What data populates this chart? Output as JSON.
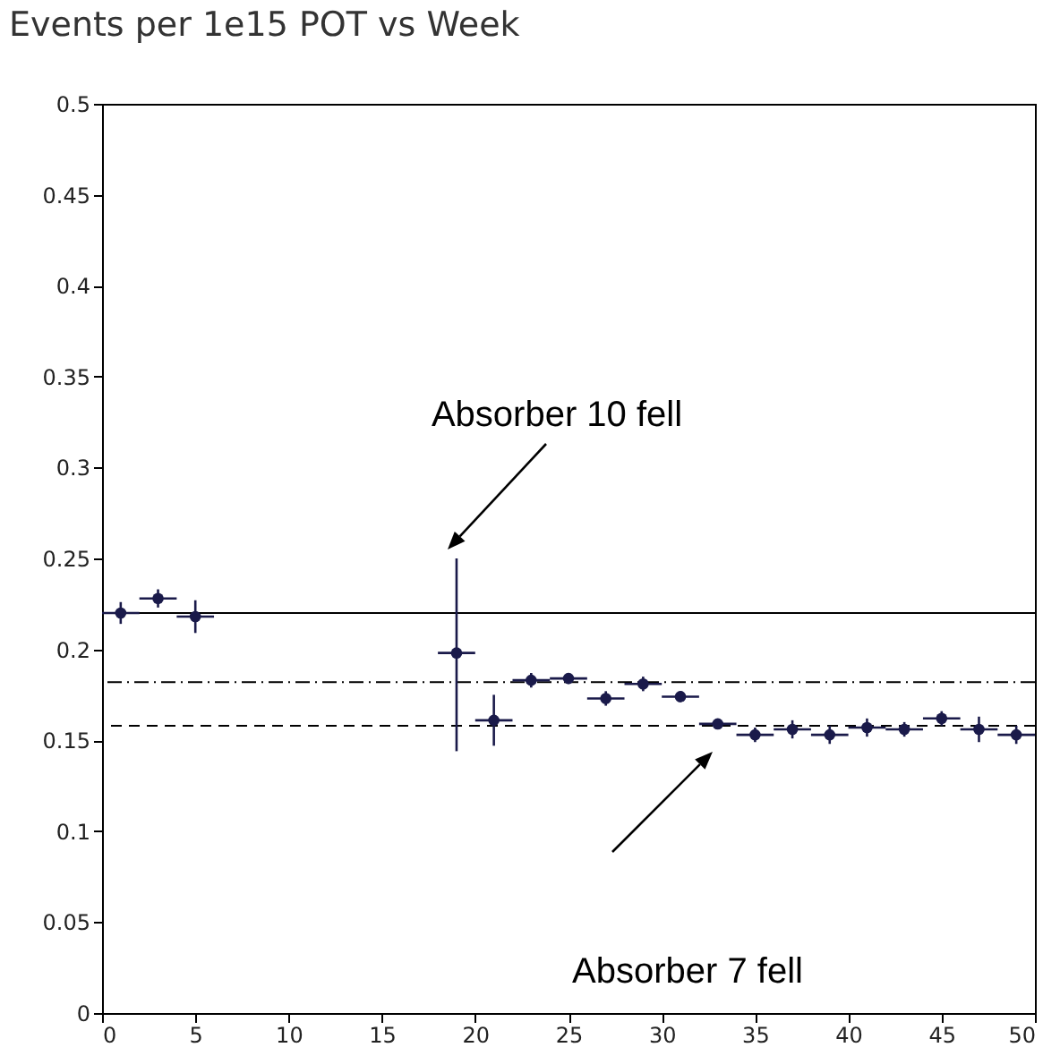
{
  "chart_data": {
    "type": "scatter",
    "title": "Events per 1e15 POT vs Week",
    "x": [
      1,
      3,
      5,
      19,
      21,
      23,
      25,
      27,
      29,
      31,
      33,
      35,
      37,
      39,
      41,
      43,
      45,
      47,
      49
    ],
    "series": [
      {
        "color": "#1a1a4a",
        "values": [
          0.22,
          0.228,
          0.218,
          0.198,
          0.161,
          0.183,
          0.184,
          0.173,
          0.181,
          0.174,
          0.159,
          0.153,
          0.156,
          0.153,
          0.157,
          0.156,
          0.162,
          0.156,
          0.153
        ],
        "errors": [
          0.006,
          0.005,
          0.009,
          [
            0.144,
            0.25
          ],
          0.014,
          0.004,
          0.003,
          0.004,
          0.004,
          0.003,
          0.002,
          0.004,
          0.005,
          0.005,
          0.005,
          0.004,
          0.004,
          0.007,
          0.005
        ],
        "xerrors": [
          1,
          1,
          1,
          1,
          1,
          1,
          1,
          1,
          1,
          1,
          1,
          1,
          1,
          1,
          1,
          1,
          1,
          1,
          1
        ]
      }
    ],
    "xlim": [
      0,
      50
    ],
    "xticks": [
      0,
      5,
      10,
      15,
      20,
      25,
      30,
      35,
      40,
      45,
      50
    ],
    "ylim": [
      0,
      0.5
    ],
    "yticks": [
      0,
      0.05,
      0.1,
      0.15,
      0.2,
      0.25,
      0.3,
      0.35,
      0.4,
      0.45,
      0.5
    ],
    "ref_lines": [
      {
        "axis": "y",
        "value": 0.22,
        "line_style": "solid"
      },
      {
        "axis": "y",
        "value": 0.182,
        "line_style": "dotted"
      },
      {
        "axis": "y",
        "value": 0.158,
        "line_style": "dashed"
      }
    ],
    "annotations": [
      "Absorber 10 fell",
      "Absorber 7 fell"
    ],
    "marker": "circle",
    "grid": false
  }
}
